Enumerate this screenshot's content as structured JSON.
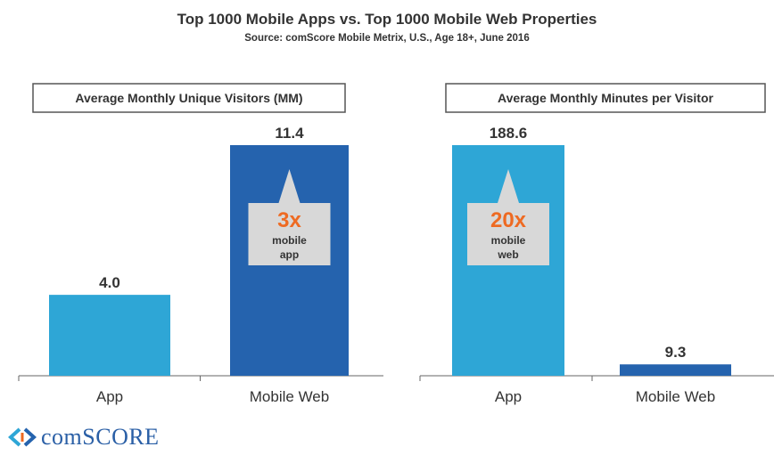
{
  "brand": {
    "logo_text": "comSCORE",
    "logo_color": "#2a5fa6"
  },
  "colors": {
    "app": "#2ea6d6",
    "web": "#2563ae",
    "accent": "#ee6a22",
    "callout_bg": "#d8d8d8"
  },
  "chart_data": [
    {
      "type": "bar",
      "title": "Top 1000 Mobile Apps vs. Top 1000 Mobile Web Properties",
      "subtitle": "Source: comScore Mobile Metrix, U.S., Age 18+, June 2016",
      "panel_title": "Average Monthly Unique Visitors (MM)",
      "categories": [
        "App",
        "Mobile Web"
      ],
      "values": [
        4.0,
        11.4
      ],
      "value_labels": [
        "4.0",
        "11.4"
      ],
      "ylim": [
        0,
        11.4
      ],
      "callout": {
        "on": "Mobile Web",
        "multiplier": "3x",
        "line1": "mobile",
        "line2": "app"
      }
    },
    {
      "type": "bar",
      "panel_title": "Average Monthly Minutes per Visitor",
      "categories": [
        "App",
        "Mobile Web"
      ],
      "values": [
        188.6,
        9.3
      ],
      "value_labels": [
        "188.6",
        "9.3"
      ],
      "ylim": [
        0,
        188.6
      ],
      "callout": {
        "on": "App",
        "multiplier": "20x",
        "line1": "mobile",
        "line2": "web"
      }
    }
  ]
}
